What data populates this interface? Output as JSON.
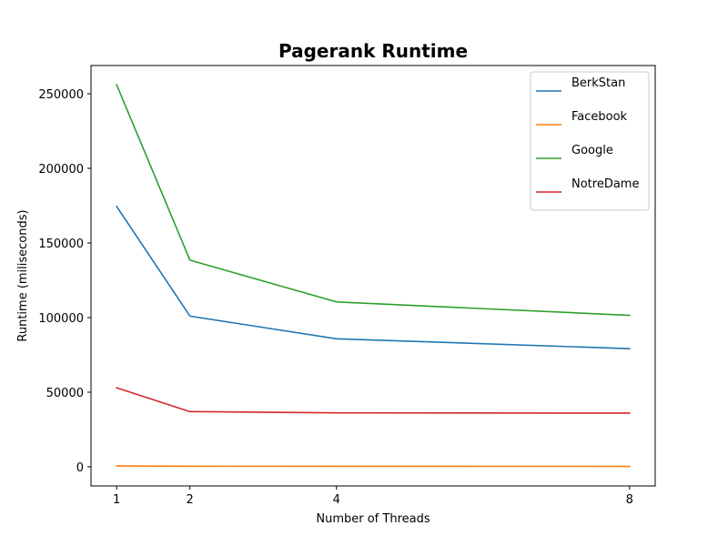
{
  "chart_data": {
    "type": "line",
    "title": "Pagerank Runtime",
    "xlabel": "Number of Threads",
    "ylabel": "Runtime (miliseconds)",
    "x": [
      1,
      2,
      4,
      8
    ],
    "xticks": [
      1,
      2,
      4,
      8
    ],
    "yticks": [
      0,
      50000,
      100000,
      150000,
      200000,
      250000
    ],
    "xlim": [
      0.65,
      8.35
    ],
    "ylim": [
      -12800,
      268900
    ],
    "grid": false,
    "legend_position": "top-right",
    "series": [
      {
        "name": "BerkStan",
        "color": "#1f77b4",
        "values": [
          174500,
          101000,
          85800,
          79200
        ]
      },
      {
        "name": "Facebook",
        "color": "#ff7f0e",
        "values": [
          600,
          400,
          350,
          300
        ]
      },
      {
        "name": "Google",
        "color": "#2ca02c",
        "values": [
          256000,
          138500,
          110500,
          101500
        ]
      },
      {
        "name": "NotreDame",
        "color": "#d62728",
        "values": [
          53000,
          37000,
          36200,
          36000
        ]
      }
    ]
  }
}
